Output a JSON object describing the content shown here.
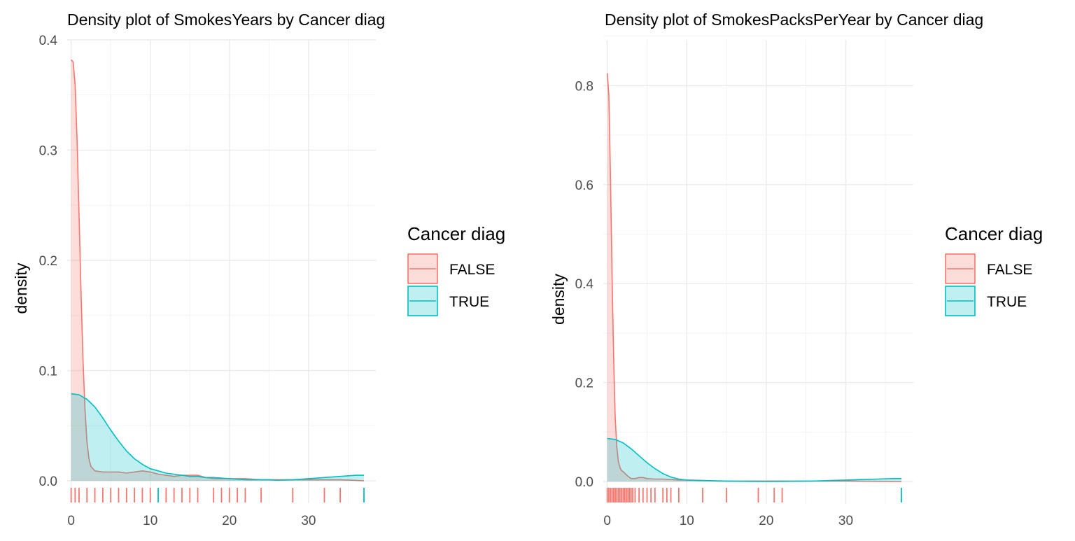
{
  "legend_title": "Cancer diag",
  "colors": {
    "false": "#F8766D",
    "true": "#00BFC4",
    "grid": "#EBEBEB",
    "text": "#4D4D4D"
  },
  "chart_data": [
    {
      "type": "area",
      "title": "Density plot of SmokesYears by Cancer diag",
      "xlabel": "",
      "ylabel": "density",
      "xlim": [
        -0.5,
        38.5
      ],
      "ylim": [
        0,
        0.4
      ],
      "x_ticks": [
        0,
        10,
        20,
        30
      ],
      "x_tick_labels": [
        "0",
        "10",
        "20",
        "30"
      ],
      "y_ticks": [
        0,
        0.1,
        0.2,
        0.3,
        0.4
      ],
      "y_tick_labels": [
        "0.0",
        "0.1",
        "0.2",
        "0.3",
        "0.4"
      ],
      "grid": true,
      "legend": {
        "title": "Cancer diag",
        "placement": "right"
      },
      "series": [
        {
          "name": "FALSE",
          "x": [
            0,
            0.25,
            0.5,
            0.75,
            1,
            1.25,
            1.5,
            1.75,
            2,
            2.25,
            2.5,
            3,
            4,
            5,
            6,
            7,
            8,
            9,
            10,
            11,
            12,
            13,
            14,
            15,
            16,
            17,
            18,
            19,
            20,
            22,
            24,
            26,
            28,
            30,
            32,
            34,
            37
          ],
          "y": [
            0.382,
            0.38,
            0.36,
            0.31,
            0.24,
            0.17,
            0.11,
            0.065,
            0.035,
            0.02,
            0.013,
            0.009,
            0.008,
            0.008,
            0.008,
            0.007,
            0.008,
            0.009,
            0.008,
            0.006,
            0.005,
            0.004,
            0.005,
            0.005,
            0.005,
            0.003,
            0.002,
            0.002,
            0.002,
            0.002,
            0.001,
            0.001,
            0.001,
            0.001,
            0.001,
            0.001,
            0.0
          ],
          "rug": [
            0,
            0.5,
            1,
            2,
            3,
            4,
            5,
            6,
            7,
            8,
            9,
            10,
            12,
            13,
            14,
            15,
            16,
            18,
            19,
            20,
            21,
            22,
            24,
            28,
            32,
            34
          ]
        },
        {
          "name": "TRUE",
          "x": [
            0,
            1,
            2,
            3,
            4,
            5,
            6,
            7,
            8,
            9,
            10,
            11,
            12,
            13,
            14,
            15,
            16,
            17,
            18,
            20,
            22,
            24,
            25,
            26,
            28,
            30,
            32,
            34,
            36,
            37
          ],
          "y": [
            0.079,
            0.078,
            0.074,
            0.067,
            0.057,
            0.046,
            0.036,
            0.027,
            0.02,
            0.015,
            0.011,
            0.009,
            0.007,
            0.006,
            0.005,
            0.004,
            0.004,
            0.003,
            0.003,
            0.002,
            0.001,
            0.001,
            0.001,
            0.0005,
            0.001,
            0.002,
            0.003,
            0.004,
            0.005,
            0.005
          ],
          "rug": [
            11,
            37
          ]
        }
      ]
    },
    {
      "type": "area",
      "title": "Density plot of SmokesPacksPerYear by Cancer diag",
      "xlabel": "",
      "ylabel": "density",
      "xlim": [
        -0.5,
        38.5
      ],
      "ylim": [
        0,
        0.85
      ],
      "x_ticks": [
        0,
        10,
        20,
        30
      ],
      "x_tick_labels": [
        "0",
        "10",
        "20",
        "30"
      ],
      "y_ticks": [
        0,
        0.2,
        0.4,
        0.6,
        0.8
      ],
      "y_tick_labels": [
        "0.0",
        "0.2",
        "0.4",
        "0.6",
        "0.8"
      ],
      "grid": true,
      "legend": {
        "title": "Cancer diag",
        "placement": "right"
      },
      "series": [
        {
          "name": "FALSE",
          "x": [
            0,
            0.2,
            0.4,
            0.6,
            0.8,
            1,
            1.2,
            1.4,
            1.6,
            1.8,
            2,
            2.5,
            3,
            3.5,
            4,
            4.5,
            5,
            6,
            7,
            8,
            9,
            10,
            12,
            15,
            20,
            25,
            30,
            37
          ],
          "y": [
            0.825,
            0.78,
            0.62,
            0.42,
            0.25,
            0.13,
            0.07,
            0.04,
            0.028,
            0.022,
            0.02,
            0.012,
            0.006,
            0.006,
            0.008,
            0.008,
            0.006,
            0.005,
            0.005,
            0.004,
            0.003,
            0.003,
            0.002,
            0.001,
            0.001,
            0.001,
            0.001,
            0.0
          ],
          "rug": [
            0,
            0.2,
            0.4,
            0.6,
            0.8,
            1,
            1.2,
            1.4,
            1.6,
            1.8,
            2,
            2.2,
            2.4,
            2.6,
            2.8,
            3,
            3.2,
            3.5,
            4,
            4.5,
            5,
            5.5,
            6,
            7,
            7.5,
            8,
            9,
            12,
            15,
            19,
            21,
            22
          ]
        },
        {
          "name": "TRUE",
          "x": [
            0,
            1,
            2,
            3,
            4,
            5,
            6,
            7,
            8,
            9,
            10,
            12,
            14,
            16,
            18,
            20,
            22,
            24,
            26,
            28,
            30,
            32,
            34,
            36,
            37
          ],
          "y": [
            0.087,
            0.085,
            0.078,
            0.066,
            0.052,
            0.038,
            0.026,
            0.016,
            0.009,
            0.005,
            0.003,
            0.002,
            0.001,
            0.0005,
            0.0003,
            0.0002,
            0.0003,
            0.0005,
            0.001,
            0.002,
            0.003,
            0.004,
            0.005,
            0.006,
            0.006
          ],
          "rug": [
            37
          ]
        }
      ]
    }
  ]
}
